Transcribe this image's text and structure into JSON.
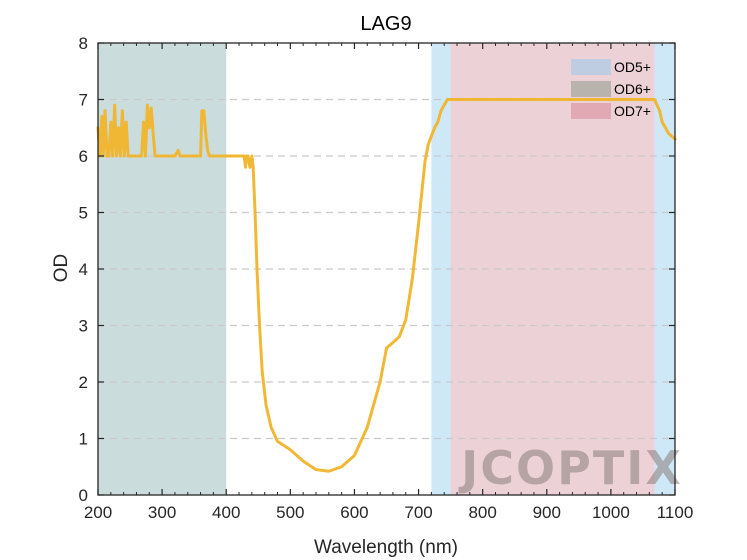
{
  "chart_data": {
    "type": "line",
    "title": "LAG9",
    "xlabel": "Wavelength (nm)",
    "ylabel": "OD",
    "xlim": [
      200,
      1100
    ],
    "ylim": [
      0,
      8
    ],
    "xticks": [
      200,
      300,
      400,
      500,
      600,
      700,
      800,
      900,
      1000,
      1100
    ],
    "yticks": [
      0,
      1,
      2,
      3,
      4,
      5,
      6,
      7,
      8
    ],
    "grid": "horizontal-dashed",
    "legend_position": "top-right",
    "bands": [
      {
        "name": "OD5+",
        "x": [
          720,
          1100
        ],
        "color": "#cfe8f7"
      },
      {
        "name": "OD6+",
        "x": [
          200,
          400
        ],
        "color": "#cbdcdc"
      },
      {
        "name": "OD7+",
        "x": [
          750,
          1068
        ],
        "color": "#ecd2d6"
      }
    ],
    "legend_colors": {
      "OD5+": "#bfcde3",
      "OD6+": "#b8b3ad",
      "OD7+": "#e0a9b3"
    },
    "series": [
      {
        "color": "#f0b42a",
        "x": [
          200,
          203,
          206,
          208,
          211,
          214,
          217,
          220,
          223,
          226,
          229,
          232,
          235,
          238,
          241,
          244,
          247,
          250,
          253,
          256,
          259,
          262,
          265,
          268,
          271,
          274,
          277,
          280,
          283,
          286,
          289,
          292,
          300,
          320,
          325,
          328,
          340,
          360,
          362,
          365,
          368,
          371,
          374,
          380,
          400,
          420,
          428,
          430,
          432,
          434,
          437,
          440,
          442,
          445,
          448,
          452,
          456,
          462,
          470,
          480,
          500,
          520,
          540,
          560,
          580,
          600,
          620,
          640,
          650,
          660,
          670,
          680,
          690,
          700,
          710,
          715,
          720,
          725,
          730,
          735,
          740,
          745,
          750,
          760,
          800,
          900,
          1000,
          1068,
          1072,
          1076,
          1080,
          1085,
          1090,
          1095,
          1100
        ],
        "y": [
          6.5,
          6.0,
          6.7,
          6.0,
          6.8,
          6.0,
          6.0,
          6.6,
          6.0,
          6.9,
          6.0,
          6.5,
          6.0,
          6.8,
          6.0,
          6.6,
          6.0,
          6.0,
          6.0,
          6.0,
          6.0,
          6.0,
          6.0,
          6.0,
          6.6,
          6.0,
          6.9,
          6.5,
          6.85,
          6.4,
          6.0,
          6.0,
          6.0,
          6.0,
          6.1,
          6.0,
          6.0,
          6.0,
          6.8,
          6.8,
          6.4,
          6.1,
          6.0,
          6.0,
          6.0,
          6.0,
          6.0,
          5.8,
          6.0,
          6.0,
          5.8,
          6.0,
          5.8,
          5.0,
          4.0,
          3.0,
          2.2,
          1.6,
          1.2,
          0.95,
          0.8,
          0.6,
          0.45,
          0.42,
          0.5,
          0.7,
          1.2,
          2.0,
          2.6,
          2.7,
          2.8,
          3.1,
          3.8,
          4.8,
          5.9,
          6.2,
          6.35,
          6.5,
          6.6,
          6.8,
          6.9,
          7.0,
          7.0,
          7.0,
          7.0,
          7.0,
          7.0,
          7.0,
          6.9,
          6.8,
          6.6,
          6.5,
          6.4,
          6.35,
          6.3
        ]
      }
    ]
  },
  "watermark": "JCOPTIX"
}
